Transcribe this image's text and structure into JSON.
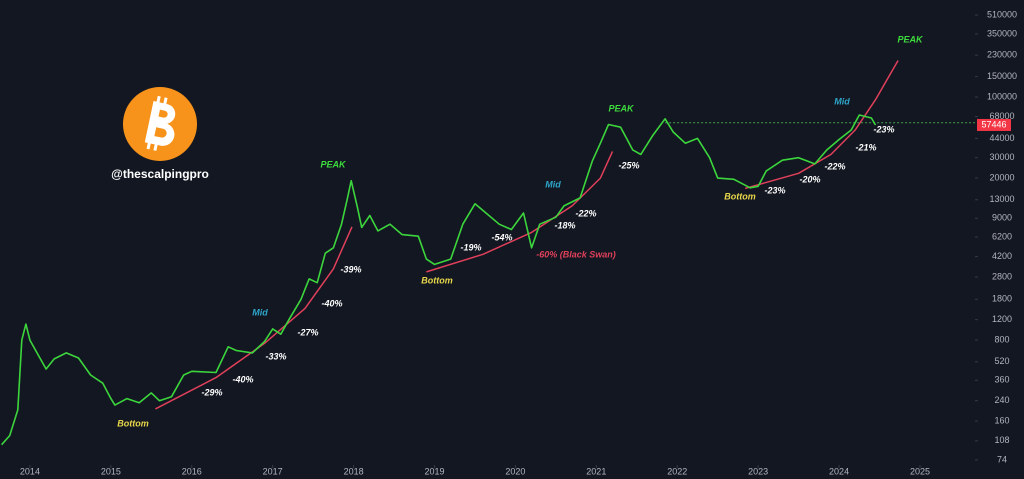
{
  "chart_data": {
    "type": "line",
    "log_scale": true,
    "grid": false,
    "background": "#131722",
    "watermark": "@thescalpingpro",
    "xlim": [
      2013.63,
      2025.68
    ],
    "xticks": [
      2014,
      2015,
      2016,
      2017,
      2018,
      2019,
      2020,
      2021,
      2022,
      2023,
      2024,
      2025
    ],
    "ylim": [
      63,
      688000
    ],
    "yticks": [
      74,
      108,
      160,
      240,
      360,
      520,
      800,
      1200,
      1800,
      2800,
      4200,
      6200,
      9000,
      13000,
      20000,
      30000,
      44000,
      68000,
      100000,
      150000,
      230000,
      350000,
      510000
    ],
    "last_price": 57446,
    "last_price_color": "#f23645",
    "ath_line": {
      "value": 60000,
      "x_start": 2021.85,
      "color": "#3fa34d"
    },
    "series": [
      {
        "color": "#3cd63c",
        "x": [
          2013.65,
          2013.75,
          2013.85,
          2013.9,
          2013.95,
          2014.0,
          2014.1,
          2014.2,
          2014.3,
          2014.45,
          2014.6,
          2014.75,
          2014.9,
          2015.0,
          2015.05,
          2015.2,
          2015.35,
          2015.5,
          2015.6,
          2015.75,
          2015.9,
          2016.0,
          2016.3,
          2016.45,
          2016.55,
          2016.75,
          2016.9,
          2017.0,
          2017.1,
          2017.2,
          2017.35,
          2017.45,
          2017.55,
          2017.65,
          2017.75,
          2017.85,
          2017.92,
          2017.97,
          2018.05,
          2018.1,
          2018.2,
          2018.3,
          2018.45,
          2018.6,
          2018.8,
          2018.9,
          2019.0,
          2019.2,
          2019.35,
          2019.5,
          2019.6,
          2019.8,
          2019.95,
          2020.1,
          2020.2,
          2020.3,
          2020.5,
          2020.6,
          2020.8,
          2020.95,
          2021.05,
          2021.15,
          2021.3,
          2021.45,
          2021.55,
          2021.7,
          2021.85,
          2021.95,
          2022.1,
          2022.25,
          2022.4,
          2022.5,
          2022.7,
          2022.9,
          2023.0,
          2023.1,
          2023.3,
          2023.5,
          2023.7,
          2023.85,
          2024.0,
          2024.15,
          2024.25,
          2024.4,
          2024.45
        ],
        "values": [
          100,
          120,
          200,
          800,
          1100,
          800,
          600,
          450,
          550,
          620,
          560,
          400,
          340,
          250,
          220,
          250,
          230,
          280,
          240,
          260,
          400,
          430,
          420,
          700,
          650,
          620,
          780,
          1000,
          900,
          1200,
          1800,
          2700,
          2500,
          4500,
          5000,
          8000,
          13000,
          19000,
          11000,
          7500,
          9500,
          7000,
          8000,
          6500,
          6300,
          4000,
          3600,
          4000,
          8000,
          12000,
          10500,
          8000,
          7200,
          10000,
          5000,
          8000,
          9200,
          11500,
          13500,
          28000,
          40000,
          58000,
          55000,
          35000,
          32000,
          47000,
          65000,
          50000,
          40000,
          44000,
          30000,
          20000,
          19500,
          16500,
          17000,
          23000,
          28500,
          30000,
          26500,
          35000,
          43000,
          52000,
          70000,
          66000,
          57446
        ]
      }
    ],
    "curves": [
      {
        "color": "#e0405a",
        "x": [
          2015.55,
          2016.3,
          2016.9,
          2017.4,
          2017.75,
          2017.98
        ],
        "values": [
          204,
          380,
          750,
          1500,
          3300,
          7600
        ]
      },
      {
        "color": "#e0405a",
        "x": [
          2018.9,
          2019.6,
          2020.2,
          2020.7,
          2021.05,
          2021.2
        ],
        "values": [
          3100,
          4400,
          6800,
          11500,
          20000,
          34000
        ]
      },
      {
        "color": "#e0405a",
        "x": [
          2022.84,
          2023.5,
          2023.9,
          2024.2,
          2024.45,
          2024.73
        ],
        "values": [
          16300,
          22000,
          32000,
          52000,
          95000,
          207000
        ]
      }
    ],
    "annotations": [
      {
        "text": "Bottom",
        "color": "#e8d84a"
      },
      {
        "text": "-29%",
        "color": "#ffffff"
      },
      {
        "text": "-40%",
        "color": "#ffffff"
      },
      {
        "text": "-33%",
        "color": "#ffffff"
      },
      {
        "text": "Mid",
        "color": "#2ea6c9"
      },
      {
        "text": "-27%",
        "color": "#ffffff"
      },
      {
        "text": "-40%",
        "color": "#ffffff"
      },
      {
        "text": "-39%",
        "color": "#ffffff"
      },
      {
        "text": "PEAK",
        "color": "#3ddc3d"
      },
      {
        "text": "Bottom",
        "color": "#e8d84a"
      },
      {
        "text": "-19%",
        "color": "#ffffff"
      },
      {
        "text": "-54%",
        "color": "#ffffff"
      },
      {
        "text": "-60% (Black Swan)",
        "color": "#e0405a"
      },
      {
        "text": "-18%",
        "color": "#ffffff"
      },
      {
        "text": "Mid",
        "color": "#2ea6c9"
      },
      {
        "text": "-22%",
        "color": "#ffffff"
      },
      {
        "text": "PEAK",
        "color": "#3ddc3d"
      },
      {
        "text": "-25%",
        "color": "#ffffff"
      },
      {
        "text": "Bottom",
        "color": "#e8d84a"
      },
      {
        "text": "-23%",
        "color": "#ffffff"
      },
      {
        "text": "-20%",
        "color": "#ffffff"
      },
      {
        "text": "-22%",
        "color": "#ffffff"
      },
      {
        "text": "-21%",
        "color": "#ffffff"
      },
      {
        "text": "-23%",
        "color": "#ffffff"
      },
      {
        "text": "Mid",
        "color": "#2ea6c9"
      },
      {
        "text": "PEAK",
        "color": "#3ddc3d"
      }
    ]
  }
}
